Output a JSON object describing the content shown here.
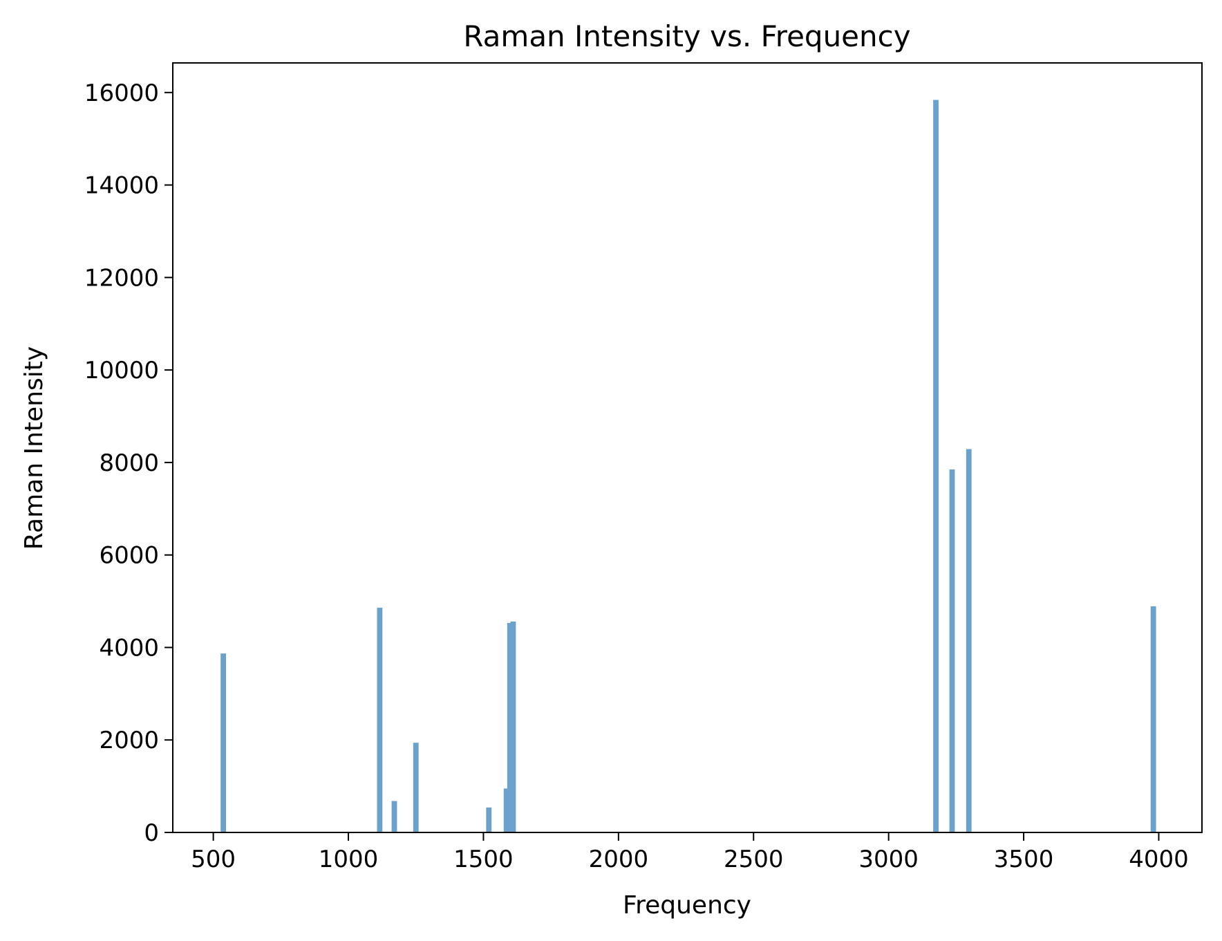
{
  "chart_data": {
    "type": "bar",
    "title": "Raman Intensity vs. Frequency",
    "xlabel": "Frequency",
    "ylabel": "Raman Intensity",
    "xlim": [
      350,
      4160
    ],
    "ylim": [
      0,
      16640
    ],
    "xticks": [
      500,
      1000,
      1500,
      2000,
      2500,
      3000,
      3500,
      4000
    ],
    "yticks": [
      0,
      2000,
      4000,
      6000,
      8000,
      10000,
      12000,
      14000,
      16000
    ],
    "grid": false,
    "bar_width": 20,
    "bar_color": "#6aa2cc",
    "bars": [
      {
        "x": 537,
        "y": 3870
      },
      {
        "x": 1116,
        "y": 4860
      },
      {
        "x": 1170,
        "y": 680
      },
      {
        "x": 1250,
        "y": 1940
      },
      {
        "x": 1520,
        "y": 540
      },
      {
        "x": 1585,
        "y": 950
      },
      {
        "x": 1598,
        "y": 4530
      },
      {
        "x": 1610,
        "y": 4560
      },
      {
        "x": 3175,
        "y": 15840
      },
      {
        "x": 3235,
        "y": 7850
      },
      {
        "x": 3297,
        "y": 8290
      },
      {
        "x": 3980,
        "y": 4890
      }
    ]
  }
}
